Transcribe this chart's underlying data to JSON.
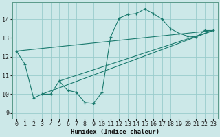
{
  "xlabel": "Humidex (Indice chaleur)",
  "bg_color": "#cce8e8",
  "line_color": "#1a7a6e",
  "grid_color": "#99cccc",
  "xlim": [
    -0.5,
    23.5
  ],
  "ylim": [
    8.7,
    14.9
  ],
  "yticks": [
    9,
    10,
    11,
    12,
    13,
    14
  ],
  "xticks": [
    0,
    1,
    2,
    3,
    4,
    5,
    6,
    7,
    8,
    9,
    10,
    11,
    12,
    13,
    14,
    15,
    16,
    17,
    18,
    19,
    20,
    21,
    22,
    23
  ],
  "zigzag": [
    [
      0,
      12.3
    ],
    [
      1,
      11.6
    ],
    [
      2,
      9.8
    ],
    [
      3,
      10.0
    ],
    [
      4,
      10.0
    ],
    [
      5,
      10.7
    ],
    [
      6,
      10.2
    ],
    [
      7,
      10.1
    ],
    [
      8,
      9.55
    ],
    [
      9,
      9.5
    ],
    [
      10,
      10.1
    ],
    [
      11,
      13.05
    ],
    [
      12,
      14.05
    ],
    [
      13,
      14.25
    ],
    [
      14,
      14.3
    ],
    [
      15,
      14.55
    ],
    [
      16,
      14.3
    ],
    [
      17,
      14.0
    ],
    [
      18,
      13.5
    ],
    [
      19,
      13.25
    ],
    [
      20,
      13.1
    ],
    [
      21,
      13.05
    ],
    [
      22,
      13.4
    ],
    [
      23,
      13.4
    ]
  ],
  "straight_lines": [
    {
      "x": [
        0,
        23
      ],
      "y": [
        12.3,
        13.4
      ]
    },
    {
      "x": [
        3,
        23
      ],
      "y": [
        10.0,
        13.4
      ]
    },
    {
      "x": [
        5,
        23
      ],
      "y": [
        10.7,
        13.4
      ]
    }
  ]
}
